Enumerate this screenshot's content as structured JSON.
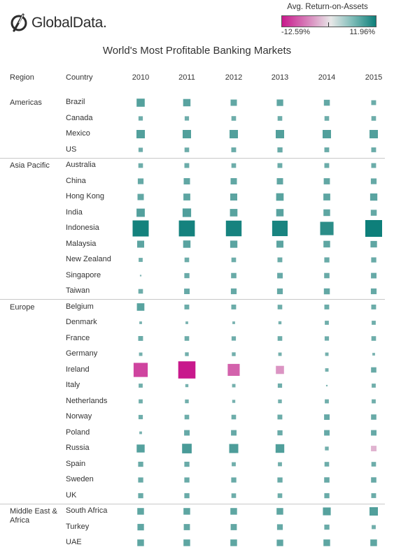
{
  "brand": {
    "name": "GlobalData."
  },
  "legend": {
    "title": "Avg. Return-on-Assets",
    "min_label": "-12.59%",
    "max_label": "11.96%",
    "min": -12.59,
    "max": 11.96,
    "color_low": "#c8198c",
    "color_mid": "#e8e8e8",
    "color_high": "#0e7f7a"
  },
  "chart_data": {
    "type": "heatmap",
    "title": "World's Most Profitable Banking Markets",
    "row_header": "Region",
    "country_header": "Country",
    "years": [
      "2010",
      "2011",
      "2012",
      "2013",
      "2014",
      "2015"
    ],
    "value_unit": "%",
    "encoding": "square area and color by Avg. Return-on-Assets (%)",
    "regions": [
      {
        "name": "Americas",
        "countries": [
          {
            "name": "Brazil",
            "values": [
              2.8,
              2.3,
              1.7,
              1.8,
              1.5,
              1.0
            ]
          },
          {
            "name": "Canada",
            "values": [
              0.8,
              0.8,
              0.9,
              0.9,
              0.9,
              0.9
            ]
          },
          {
            "name": "Mexico",
            "values": [
              3.0,
              3.0,
              3.0,
              3.0,
              3.0,
              3.0
            ]
          },
          {
            "name": "US",
            "values": [
              0.8,
              0.9,
              1.0,
              1.1,
              1.0,
              1.0
            ]
          }
        ]
      },
      {
        "name": "Asia Pacific",
        "countries": [
          {
            "name": "Australia",
            "values": [
              0.9,
              1.0,
              0.9,
              1.0,
              1.0,
              1.0
            ]
          },
          {
            "name": "China",
            "values": [
              1.4,
              1.7,
              1.7,
              1.7,
              1.6,
              1.4
            ]
          },
          {
            "name": "Hong Kong",
            "values": [
              1.7,
              2.0,
              2.1,
              2.4,
              2.0,
              2.2
            ]
          },
          {
            "name": "India",
            "values": [
              2.9,
              3.1,
              2.4,
              2.3,
              1.9,
              1.5
            ]
          },
          {
            "name": "Indonesia",
            "values": [
              11.0,
              10.8,
              10.5,
              10.2,
              7.6,
              11.96
            ]
          },
          {
            "name": "Malaysia",
            "values": [
              2.1,
              2.3,
              2.2,
              2.1,
              1.9,
              1.8
            ]
          },
          {
            "name": "New Zealand",
            "values": [
              0.7,
              0.9,
              0.9,
              1.0,
              1.1,
              1.1
            ]
          },
          {
            "name": "Singapore",
            "values": [
              0.1,
              1.1,
              1.2,
              1.3,
              1.2,
              1.3
            ]
          },
          {
            "name": "Taiwan",
            "values": [
              0.9,
              1.3,
              1.4,
              1.4,
              1.5,
              1.4
            ]
          }
        ]
      },
      {
        "name": "Europe",
        "countries": [
          {
            "name": "Belgium",
            "values": [
              2.4,
              1.0,
              1.0,
              0.9,
              1.0,
              1.0
            ]
          },
          {
            "name": "Denmark",
            "values": [
              0.3,
              0.3,
              0.3,
              0.4,
              0.7,
              0.7
            ]
          },
          {
            "name": "France",
            "values": [
              1.0,
              0.9,
              0.8,
              0.9,
              0.8,
              0.9
            ]
          },
          {
            "name": "Germany",
            "values": [
              0.5,
              0.6,
              0.6,
              0.5,
              0.5,
              0.3
            ]
          },
          {
            "name": "Ireland",
            "values": [
              -8.5,
              -12.59,
              -6.1,
              -2.8,
              0.5,
              1.2
            ]
          },
          {
            "name": "Italy",
            "values": [
              0.7,
              0.4,
              0.5,
              0.8,
              0.1,
              0.7
            ]
          },
          {
            "name": "Netherlands",
            "values": [
              0.7,
              0.6,
              0.4,
              0.6,
              0.7,
              0.7
            ]
          },
          {
            "name": "Norway",
            "values": [
              0.8,
              0.9,
              0.9,
              1.0,
              1.3,
              1.2
            ]
          },
          {
            "name": "Poland",
            "values": [
              0.3,
              1.3,
              1.3,
              1.1,
              1.3,
              1.3
            ]
          },
          {
            "name": "Russia",
            "values": [
              2.7,
              3.9,
              3.5,
              3.2,
              0.6,
              -1.3
            ]
          },
          {
            "name": "Spain",
            "values": [
              1.1,
              1.1,
              0.7,
              0.7,
              0.9,
              0.9
            ]
          },
          {
            "name": "Sweden",
            "values": [
              1.1,
              1.1,
              1.1,
              1.1,
              1.2,
              1.2
            ]
          },
          {
            "name": "UK",
            "values": [
              1.1,
              1.1,
              0.9,
              0.9,
              1.1,
              1.0
            ]
          }
        ]
      },
      {
        "name": "Middle East & Africa",
        "countries": [
          {
            "name": "South Africa",
            "values": [
              1.9,
              1.9,
              1.9,
              1.9,
              2.6,
              3.0
            ]
          },
          {
            "name": "Turkey",
            "values": [
              1.8,
              1.6,
              1.6,
              1.4,
              1.1,
              0.7
            ]
          },
          {
            "name": "UAE",
            "values": [
              1.9,
              1.9,
              1.9,
              1.8,
              1.9,
              1.9
            ]
          }
        ]
      }
    ]
  }
}
